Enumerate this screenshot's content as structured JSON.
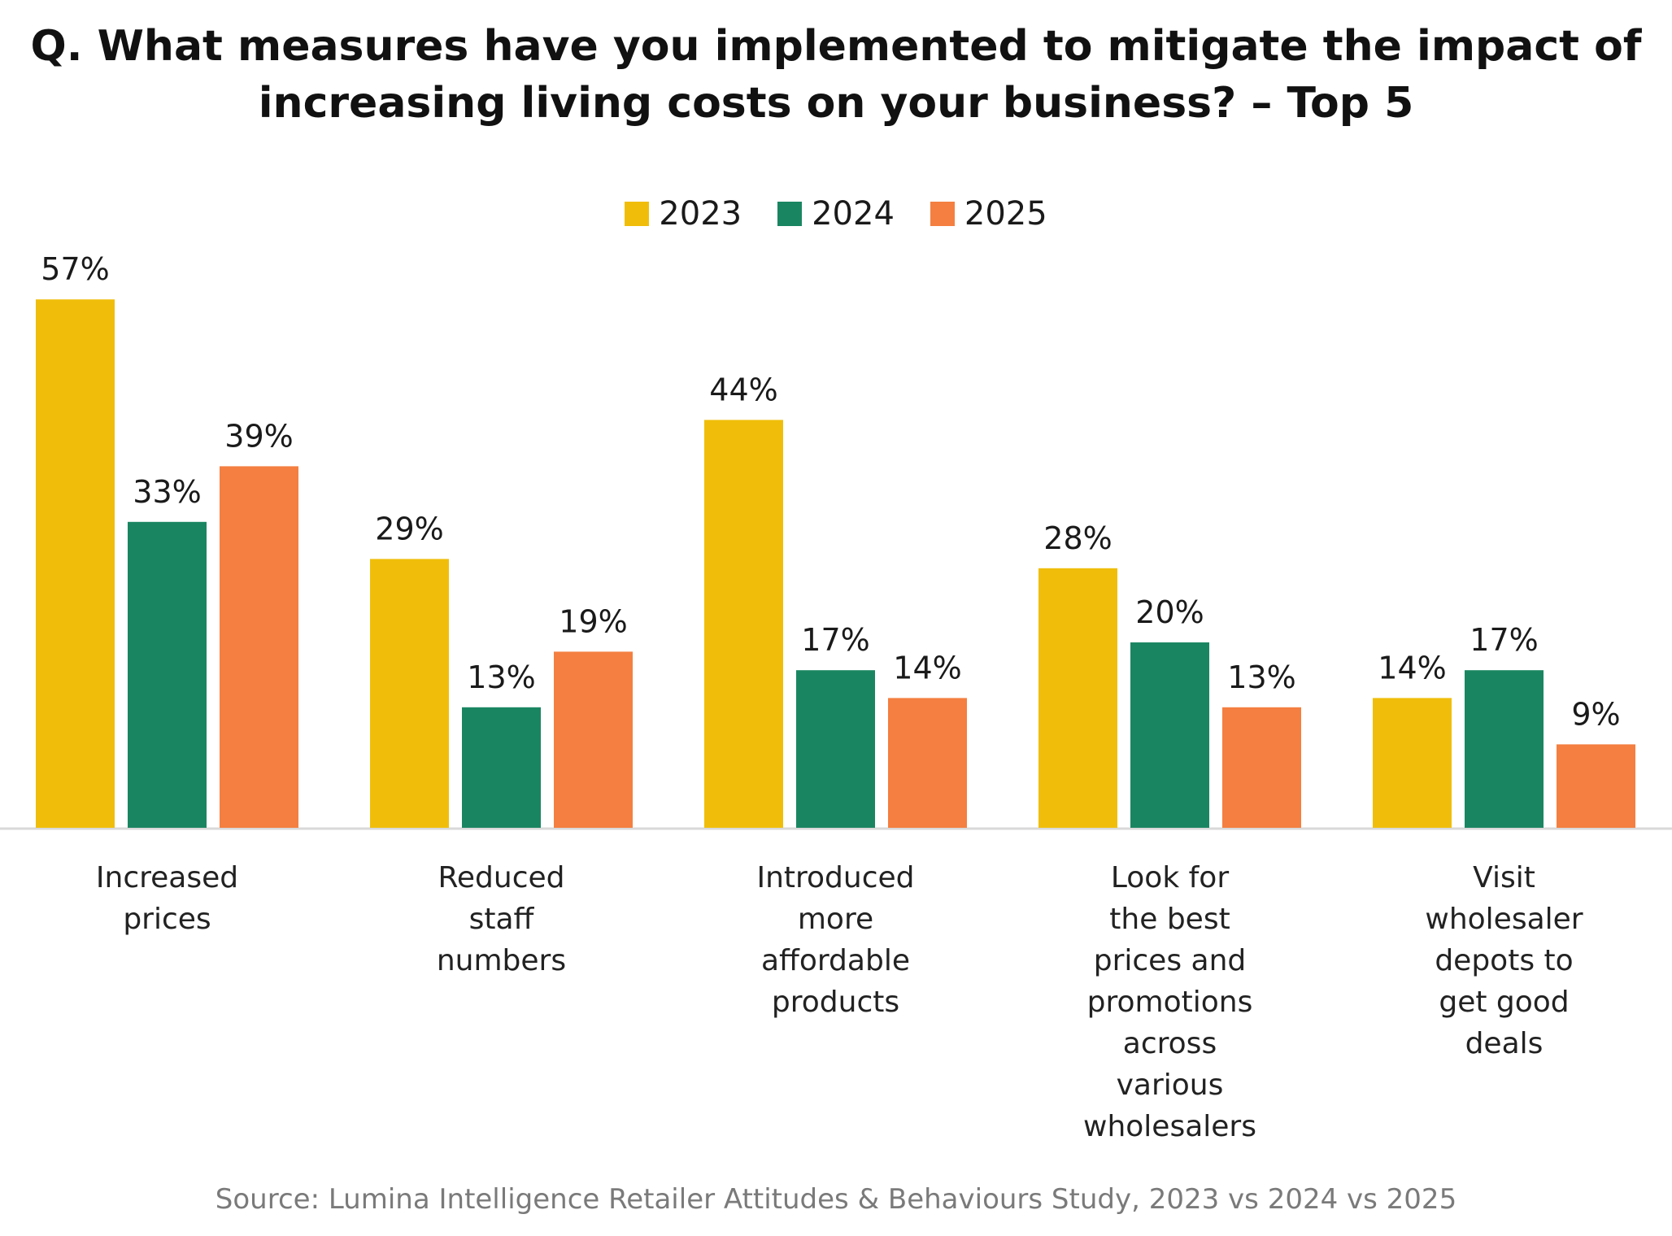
{
  "title": {
    "line1": "Q. What measures have you implemented to mitigate the impact of",
    "line2": "increasing living costs on your business? – Top 5"
  },
  "source": "Source: Lumina Intelligence Retailer Attitudes & Behaviours Study, 2023 vs 2024 vs 2025",
  "chart_data": {
    "type": "bar",
    "title": "Q. What measures have you implemented to mitigate the impact of increasing living costs on your business? – Top 5",
    "xlabel": "",
    "ylabel": "",
    "ylim": [
      0,
      60
    ],
    "grid": false,
    "legend_position": "top-center",
    "value_suffix": "%",
    "categories": [
      "Increased\nprices",
      "Reduced\nstaff\nnumbers",
      "Introduced\nmore\naffordable\nproducts",
      "Look for\nthe best\nprices and\npromotions\nacross\nvarious\nwholesalers",
      "Visit\nwholesaler\ndepots to\nget good\ndeals"
    ],
    "series": [
      {
        "name": "2023",
        "color": "#F0BE0A",
        "values": [
          57,
          29,
          44,
          28,
          14
        ]
      },
      {
        "name": "2024",
        "color": "#1A8661",
        "values": [
          33,
          13,
          17,
          20,
          17
        ]
      },
      {
        "name": "2025",
        "color": "#F47F40",
        "values": [
          39,
          19,
          14,
          13,
          9
        ]
      }
    ]
  }
}
